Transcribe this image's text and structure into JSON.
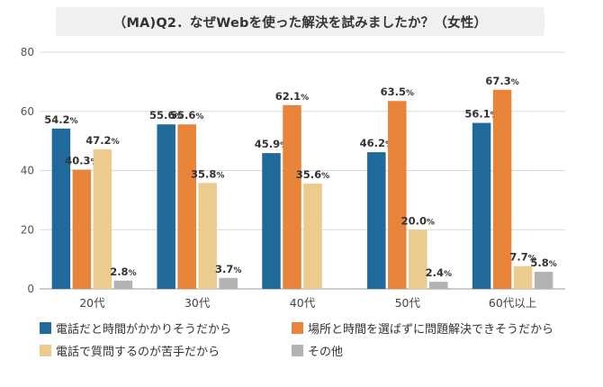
{
  "title": "（MA)Q2．なぜWebを使った解決を試みましたか？（女性）",
  "chart_data": {
    "type": "bar",
    "categories": [
      "20代",
      "30代",
      "40代",
      "50代",
      "60代以上"
    ],
    "ylim": [
      0,
      80
    ],
    "yticks": [
      0,
      20,
      40,
      60,
      80
    ],
    "grid": true,
    "legend_position": "bottom",
    "value_suffix": "%",
    "series": [
      {
        "name": "電話だと時間がかかりそうだから",
        "color": "#1f6a9a",
        "values": [
          54.2,
          55.6,
          45.9,
          46.2,
          56.1
        ]
      },
      {
        "name": "場所と時間を選ばずに問題解決できそうだから",
        "color": "#e8843a",
        "values": [
          40.3,
          55.6,
          62.1,
          63.5,
          67.3
        ]
      },
      {
        "name": "電話で質問するのが苦手だから",
        "color": "#eccb8e",
        "values": [
          47.2,
          35.8,
          35.6,
          20.0,
          7.7
        ]
      },
      {
        "name": "その他",
        "color": "#b3b3b3",
        "values": [
          2.8,
          3.7,
          null,
          2.4,
          5.8
        ]
      }
    ]
  }
}
